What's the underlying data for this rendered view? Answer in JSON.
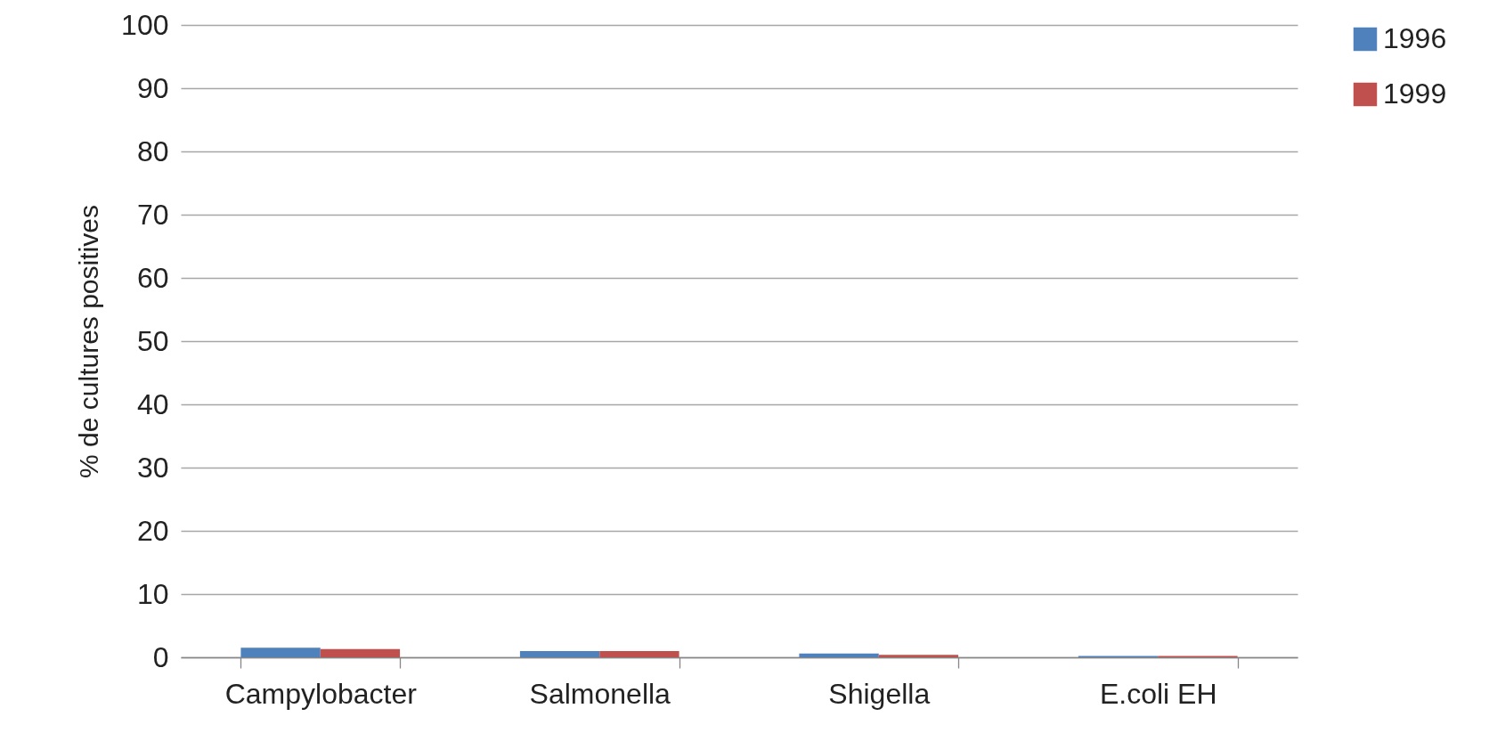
{
  "chart_data": {
    "type": "bar",
    "ylabel": "% de cultures positives",
    "categories": [
      "Campylobacter",
      "Salmonella",
      "Shigella",
      "E.coli EH"
    ],
    "series": [
      {
        "name": "1996",
        "color": "#4f81bd",
        "values": [
          1.5,
          1.0,
          0.6,
          0.2
        ]
      },
      {
        "name": "1999",
        "color": "#c0504d",
        "values": [
          1.3,
          1.0,
          0.4,
          0.2
        ]
      }
    ],
    "ylim": [
      0,
      100
    ],
    "yticks": [
      0,
      10,
      20,
      30,
      40,
      50,
      60,
      70,
      80,
      90,
      100
    ],
    "grid": "y",
    "legend": "top right"
  }
}
